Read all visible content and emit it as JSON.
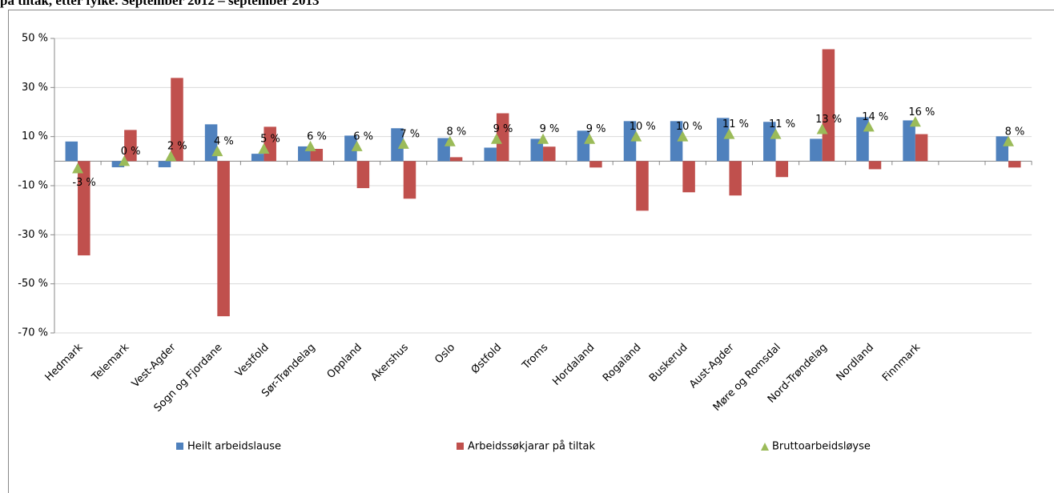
{
  "chart_data": {
    "type": "bar",
    "title": "på tiltak, etter fylke. September 2012 – september 2013",
    "categories": [
      "Hedmark",
      "Telemark",
      "Vest-Agder",
      "Sogn og Fjordane",
      "Vestfold",
      "Sør-Trøndelag",
      "Oppland",
      "Akershus",
      "Oslo",
      "Østfold",
      "Troms",
      "Hordaland",
      "Rogaland",
      "Buskerud",
      "Aust-Agder",
      "Møre og Romsdal",
      "Nord-Trøndelag",
      "Nordland",
      "Finnmark",
      null,
      null
    ],
    "series": [
      {
        "name": "Heilt arbeidslause",
        "color": "#4f81bd",
        "type": "bar",
        "values": [
          8,
          -2.5,
          -2.5,
          15,
          3,
          6,
          10.4,
          13.4,
          9.4,
          5.5,
          9.1,
          12.4,
          16.3,
          16.3,
          17.6,
          16,
          9.1,
          17.9,
          16.6,
          null,
          10.1
        ]
      },
      {
        "name": "Arbeidssøkjarar på tiltak",
        "color": "#c0504d",
        "type": "bar",
        "values": [
          -38.4,
          12.7,
          33.9,
          -63.2,
          14,
          5,
          -11,
          -15.3,
          1.6,
          19.5,
          5.9,
          -2.6,
          -20.2,
          -12.7,
          -14,
          -6.5,
          45.6,
          -3.3,
          11,
          null,
          -2.6
        ]
      },
      {
        "name": "Bruttoarbeidsløyse",
        "color": "#9bbb59",
        "type": "marker",
        "values": [
          -3,
          0,
          2,
          4,
          5,
          6,
          6,
          7,
          8,
          9,
          9,
          9,
          10,
          10,
          11,
          11,
          13,
          14,
          16,
          null,
          8
        ],
        "value_labels": [
          "-3 %",
          "0 %",
          "2 %",
          "4 %",
          "5 %",
          "6 %",
          "6 %",
          "7 %",
          "8 %",
          "9 %",
          "9 %",
          "9 %",
          "10 %",
          "10 %",
          "11 %",
          "11 %",
          "13 %",
          "14 %",
          "16 %",
          null,
          "8 %"
        ]
      }
    ],
    "ylim": [
      -70,
      50
    ],
    "yticks": [
      {
        "value": -70,
        "label": "-70 %"
      },
      {
        "value": -50,
        "label": "-50 %"
      },
      {
        "value": -30,
        "label": "-30 %"
      },
      {
        "value": -10,
        "label": "-10 %"
      },
      {
        "value": 10,
        "label": "10 %"
      },
      {
        "value": 30,
        "label": "30 %"
      },
      {
        "value": 50,
        "label": "50 %"
      }
    ],
    "grid": true,
    "legend": "bottom"
  }
}
